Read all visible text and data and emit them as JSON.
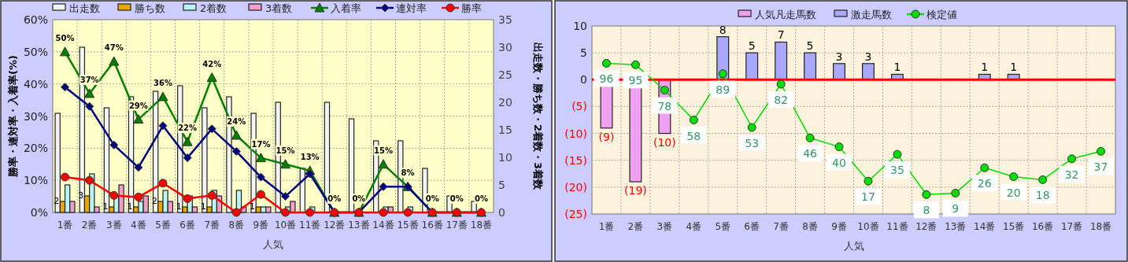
{
  "chart_data": [
    {
      "type": "bar",
      "xlabel": "人気",
      "ylabel": "勝率・連対率・入着率(%)",
      "y2label": "出走数・勝ち数・2着数・3着数",
      "categories": [
        "1番",
        "2番",
        "3番",
        "4番",
        "5番",
        "6番",
        "7番",
        "8番",
        "9番",
        "10番",
        "11番",
        "12番",
        "13番",
        "14番",
        "15番",
        "16番",
        "17番",
        "18番"
      ],
      "ylim": [
        0,
        60
      ],
      "yticks": [
        {
          "value": 0,
          "label": "0%"
        },
        {
          "value": 10,
          "label": "10%"
        },
        {
          "value": 20,
          "label": "20%"
        },
        {
          "value": 30,
          "label": "30%"
        },
        {
          "value": 40,
          "label": "40%"
        },
        {
          "value": 50,
          "label": "50%"
        },
        {
          "value": 60,
          "label": "60%"
        }
      ],
      "y2lim": [
        0,
        35
      ],
      "y2ticks": [
        0,
        5,
        10,
        15,
        20,
        25,
        30,
        35
      ],
      "grid": true,
      "legend": "top",
      "series": [
        {
          "name": "出走数",
          "axis": "y2",
          "color": "#f4f4f4",
          "values": [
            18,
            30,
            19,
            21,
            22,
            23,
            19,
            21,
            18,
            20,
            8,
            20,
            17,
            13,
            13,
            8,
            3,
            2
          ]
        },
        {
          "name": "勝ち数",
          "axis": "y2",
          "color": "#e8a800",
          "values": [
            2,
            3,
            1,
            1,
            2,
            1,
            1,
            0,
            1,
            0,
            0,
            0,
            0,
            0,
            0,
            0,
            0,
            0
          ],
          "value_labels": [
            "2",
            "3",
            "1",
            "1",
            "2",
            "1",
            "1",
            null,
            "1",
            null,
            null,
            null,
            null,
            null,
            null,
            null,
            null,
            null
          ]
        },
        {
          "name": "2着数",
          "axis": "y2",
          "color": "#b8f4f4",
          "values": [
            5,
            7,
            3,
            2,
            4,
            3,
            4,
            4,
            1,
            1,
            1,
            0,
            0,
            1,
            1,
            0,
            0,
            0
          ]
        },
        {
          "name": "3着数",
          "axis": "y2",
          "color": "#f0a0c8",
          "values": [
            2,
            1,
            5,
            3,
            2,
            1,
            3,
            1,
            1,
            2,
            0,
            0,
            0,
            1,
            0,
            0,
            0,
            0
          ]
        },
        {
          "name": "入着率",
          "type": "line",
          "axis": "y",
          "color": "#008000",
          "marker": "triangle",
          "values": [
            50,
            37,
            47,
            29,
            36,
            22,
            42,
            24,
            17,
            15,
            13,
            0,
            0,
            15,
            8,
            0,
            0,
            0
          ],
          "value_labels": [
            "50%",
            "37%",
            "47%",
            "29%",
            "36%",
            "22%",
            "42%",
            "24%",
            "17%",
            "15%",
            "13%",
            "0%",
            "0%",
            "15%",
            "8%",
            "0%",
            "0%",
            "0%"
          ]
        },
        {
          "name": "連対率",
          "type": "line",
          "axis": "y",
          "color": "#000080",
          "marker": "diamond",
          "values": [
            39,
            33,
            21,
            14,
            27,
            17,
            26,
            19,
            11,
            5,
            12,
            0,
            0,
            8,
            8,
            0,
            0,
            0
          ]
        },
        {
          "name": "勝率",
          "type": "line",
          "axis": "y",
          "color": "#ff0000",
          "marker": "circle",
          "values": [
            11,
            10,
            5.3,
            4.8,
            9.1,
            4.3,
            5.3,
            0,
            5.6,
            0,
            0,
            0,
            0,
            0,
            0,
            0,
            0,
            0
          ]
        }
      ]
    },
    {
      "type": "bar",
      "xlabel": "人気",
      "categories": [
        "1番",
        "2番",
        "3番",
        "4番",
        "5番",
        "6番",
        "7番",
        "8番",
        "9番",
        "10番",
        "11番",
        "12番",
        "13番",
        "14番",
        "15番",
        "16番",
        "17番",
        "18番"
      ],
      "ylim": [
        -25,
        10
      ],
      "yticks": [
        {
          "value": -25,
          "label": "(25)"
        },
        {
          "value": -20,
          "label": "(20)"
        },
        {
          "value": -15,
          "label": "(15)"
        },
        {
          "value": -10,
          "label": "(10)"
        },
        {
          "value": -5,
          "label": "(5)"
        },
        0,
        5,
        10
      ],
      "y2lim": [
        -5,
        121
      ],
      "tick_labels": "xy",
      "stacked": true,
      "grid": true,
      "legend": "top",
      "ref_lines": [
        {
          "axis": "y",
          "value": 0,
          "color": "#ff0000"
        }
      ],
      "series": [
        {
          "name": "人気凡走馬数",
          "axis": "y",
          "color": "#f0a0f0",
          "values": [
            -9,
            -19,
            -10,
            null,
            null,
            null,
            null,
            null,
            null,
            null,
            null,
            null,
            null,
            null,
            null,
            null,
            null,
            null
          ],
          "value_labels": [
            "(9)",
            "(19)",
            "(10)",
            null,
            null,
            null,
            null,
            null,
            null,
            null,
            null,
            null,
            null,
            null,
            null,
            null,
            null,
            null
          ]
        },
        {
          "name": "激走馬数",
          "axis": "y",
          "color": "#a8a8ff",
          "values": [
            null,
            null,
            null,
            null,
            8,
            5,
            7,
            5,
            3,
            3,
            1,
            null,
            null,
            1,
            1,
            null,
            null,
            null
          ],
          "value_labels": [
            null,
            null,
            null,
            null,
            "8",
            "5",
            "7",
            "5",
            "3",
            "3",
            "1",
            null,
            null,
            "1",
            "1",
            null,
            null,
            null
          ]
        },
        {
          "name": "検定値",
          "type": "line",
          "axis": "y2",
          "color": "#00dd00",
          "marker": "circle",
          "values": [
            96,
            95,
            78,
            58,
            89,
            53,
            82,
            46,
            40,
            17,
            35,
            8,
            9,
            26,
            20,
            18,
            32,
            37
          ],
          "value_labels": [
            "96",
            "95",
            "78",
            "58",
            "89",
            "53",
            "82",
            "46",
            "40",
            "17",
            "35",
            "8",
            "9",
            "26",
            "20",
            "18",
            "32",
            "37"
          ]
        }
      ]
    }
  ]
}
